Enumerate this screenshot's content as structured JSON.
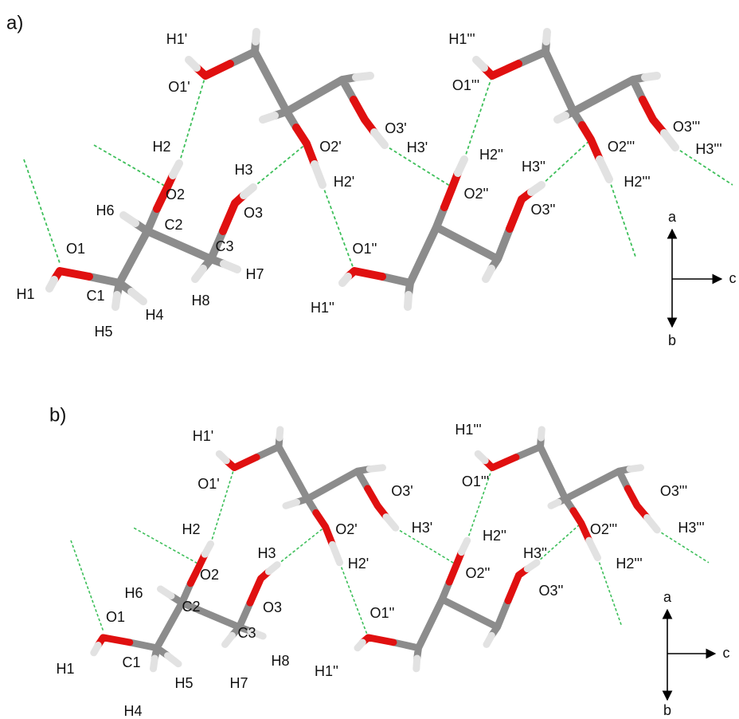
{
  "panels": [
    {
      "label": "a)",
      "atoms": [
        "H1'",
        "O1'",
        "H2",
        "O2",
        "H3",
        "O2'",
        "H2'",
        "O3'",
        "H3'",
        "H1'''",
        "O1'''",
        "H2''",
        "O2''",
        "H3''",
        "O2'''",
        "H2'''",
        "O3'''",
        "H3'''",
        "O3''",
        "O3",
        "H6",
        "C2",
        "O1",
        "C3",
        "H7",
        "H1",
        "C1",
        "H8",
        "H4",
        "H5",
        "O1''",
        "H1''"
      ],
      "axes": [
        "a",
        "c",
        "b"
      ]
    },
    {
      "label": "b)",
      "atoms": [
        "H1'",
        "O1'",
        "H2",
        "O2",
        "H3",
        "O2'",
        "H2'",
        "O3'",
        "H3'",
        "H1'''",
        "O1'''",
        "H2''",
        "O2''",
        "H3''",
        "O2'''",
        "H2'''",
        "O3'''",
        "H3'''",
        "O3''",
        "O3",
        "H6",
        "C2",
        "O1",
        "C3",
        "H8",
        "H1",
        "C1",
        "H7",
        "H4",
        "H5",
        "O1''",
        "H1''"
      ],
      "axes": [
        "a",
        "c",
        "b"
      ]
    }
  ]
}
